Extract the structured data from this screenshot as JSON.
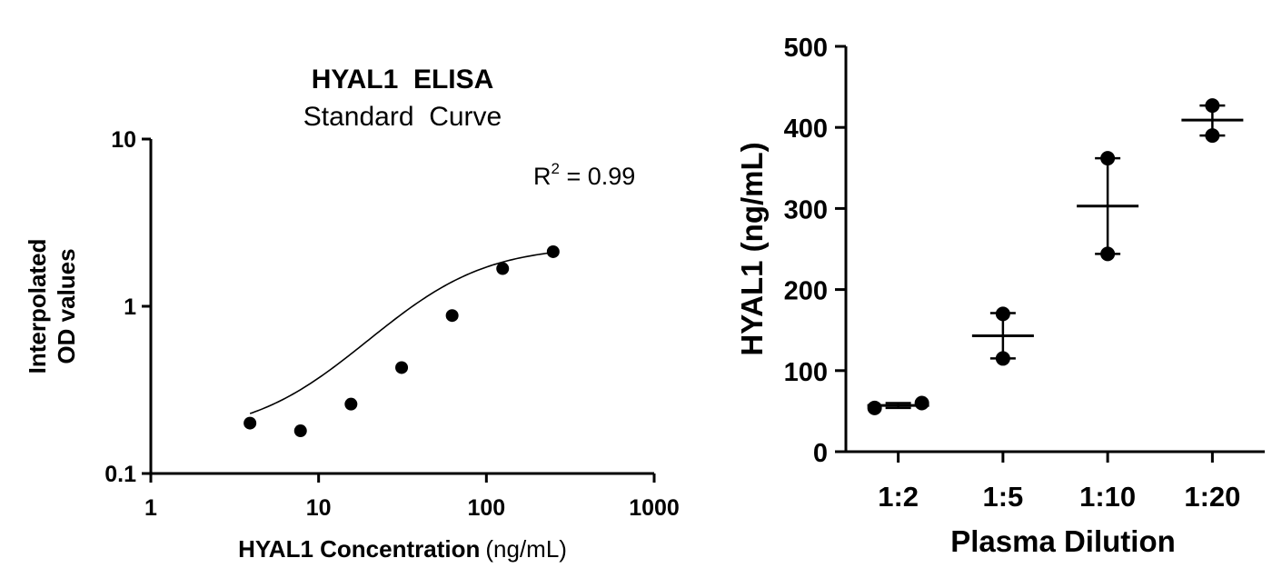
{
  "chart_data": [
    {
      "type": "scatter",
      "title": "HYAL1  ELISA",
      "subtitle": "Standard  Curve",
      "xlabel_bold": "HYAL1 Concentration",
      "xlabel_units": "(ng/mL)",
      "ylabel_line1": "Interpolated",
      "ylabel_line2": "OD values",
      "annotation_base": "R",
      "annotation_exp": "2",
      "annotation_value": " = 0.99",
      "xscale": "log",
      "yscale": "log",
      "xlim": [
        1,
        1000
      ],
      "ylim": [
        0.1,
        10
      ],
      "xticks": [
        1,
        10,
        100,
        1000
      ],
      "xtick_labels": [
        "1",
        "10",
        "100",
        "1000"
      ],
      "yticks": [
        0.1,
        1,
        10
      ],
      "ytick_labels": [
        "0.1",
        "1",
        "10"
      ],
      "points": {
        "x": [
          3.9,
          7.8,
          15.6,
          31.25,
          62.5,
          125,
          250
        ],
        "y": [
          0.2,
          0.18,
          0.26,
          0.43,
          0.88,
          1.68,
          2.12
        ]
      },
      "fit": {
        "model": "four-parameter logistic",
        "bottom": 0.17,
        "top": 2.3,
        "ec50": 50,
        "hill": 1.4
      },
      "grid": false
    },
    {
      "type": "scatter",
      "xlabel": "Plasma Dilution",
      "ylabel": "HYAL1 (ng/mL)",
      "ylim": [
        0,
        500
      ],
      "yticks": [
        0,
        100,
        200,
        300,
        400,
        500
      ],
      "ytick_labels": [
        "0",
        "100",
        "200",
        "300",
        "400",
        "500"
      ],
      "categories": [
        "1:2",
        "1:5",
        "1:10",
        "1:20"
      ],
      "groups": [
        {
          "category": "1:2",
          "values": [
            54,
            60
          ],
          "mean": 57,
          "error_low": 54,
          "error_high": 60
        },
        {
          "category": "1:5",
          "values": [
            170,
            115
          ],
          "mean": 143,
          "error_low": 115,
          "error_high": 171
        },
        {
          "category": "1:10",
          "values": [
            362,
            244
          ],
          "mean": 303,
          "error_low": 244,
          "error_high": 362
        },
        {
          "category": "1:20",
          "values": [
            427,
            390
          ],
          "mean": 409,
          "error_low": 390,
          "error_high": 427
        }
      ],
      "grid": false
    }
  ]
}
